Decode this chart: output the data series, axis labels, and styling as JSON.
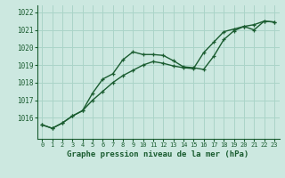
{
  "xlabel": "Graphe pression niveau de la mer (hPa)",
  "background_color": "#cce8e0",
  "grid_color": "#aad4c8",
  "line_color": "#1a5c30",
  "x_values": [
    0,
    1,
    2,
    3,
    4,
    5,
    6,
    7,
    8,
    9,
    10,
    11,
    12,
    13,
    14,
    15,
    16,
    17,
    18,
    19,
    20,
    21,
    22,
    23
  ],
  "series1": [
    1015.6,
    1015.4,
    1015.7,
    1016.1,
    1016.4,
    1017.4,
    1018.2,
    1018.5,
    1019.3,
    1019.75,
    1019.6,
    1019.6,
    1019.55,
    1019.25,
    1018.9,
    1018.85,
    1018.75,
    1019.5,
    1020.45,
    1020.95,
    1021.2,
    1021.0,
    1021.5,
    1021.45
  ],
  "series2": [
    1015.6,
    1015.4,
    1015.7,
    1016.1,
    1016.4,
    1017.0,
    1017.5,
    1018.0,
    1018.4,
    1018.7,
    1019.0,
    1019.2,
    1019.1,
    1018.95,
    1018.85,
    1018.8,
    1019.7,
    1020.3,
    1020.9,
    1021.05,
    1021.2,
    1021.3,
    1021.5,
    1021.45
  ],
  "ylim_min": 1014.8,
  "ylim_max": 1022.4,
  "yticks": [
    1016,
    1017,
    1018,
    1019,
    1020,
    1021,
    1022
  ],
  "ytick_labels": [
    "1016",
    "1017",
    "1018",
    "1019",
    "1020",
    "1021",
    "1022"
  ],
  "marker_size": 3.0,
  "linewidth": 1.0
}
